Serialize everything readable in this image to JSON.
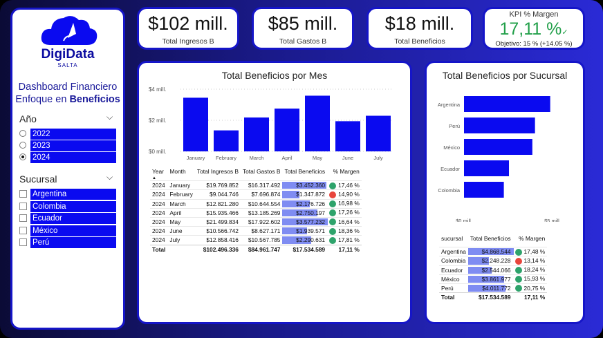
{
  "brand": {
    "name_a": "Digi",
    "name_b": "Data",
    "sub": "SALTA"
  },
  "dashboard": {
    "line1": "Dashboard Financiero",
    "line2_a": "Enfoque en ",
    "line2_b": "Beneficios"
  },
  "kpis": {
    "ingresos": {
      "value": "$102 mill.",
      "label": "Total Ingresos B"
    },
    "gastos": {
      "value": "$85 mill.",
      "label": "Total Gastos B"
    },
    "beneficios": {
      "value": "$18 mill.",
      "label": "Total Beneficios"
    },
    "margen": {
      "title": "KPI % Margen",
      "value": "17,11 %",
      "check": "✓",
      "goal": "Objetivo: 15 % (+14.05 %)"
    }
  },
  "slicers": {
    "year": {
      "title": "Año",
      "options": [
        "2022",
        "2023",
        "2024"
      ],
      "selected": "2024"
    },
    "branch": {
      "title": "Sucursal",
      "options": [
        "Argentina",
        "Colombia",
        "Ecuador",
        "México",
        "Perú"
      ]
    }
  },
  "monthly": {
    "title": "Total Beneficios por Mes",
    "headers": [
      "Year",
      "Month",
      "Total Ingresos B",
      "Total Gastos B",
      "Total Beneficios",
      "% Margen"
    ],
    "rows": [
      {
        "year": "2024",
        "month": "January",
        "ing": "$19.769.852",
        "gas": "$16.317.492",
        "ben": "$3.452.360",
        "benv": 3.452,
        "marg": "17,46 %",
        "status": "green"
      },
      {
        "year": "2024",
        "month": "February",
        "ing": "$9.044.746",
        "gas": "$7.696.874",
        "ben": "$1.347.872",
        "benv": 1.348,
        "marg": "14,90 %",
        "status": "red"
      },
      {
        "year": "2024",
        "month": "March",
        "ing": "$12.821.280",
        "gas": "$10.644.554",
        "ben": "$2.176.726",
        "benv": 2.177,
        "marg": "16,98 %",
        "status": "green"
      },
      {
        "year": "2024",
        "month": "April",
        "ing": "$15.935.466",
        "gas": "$13.185.269",
        "ben": "$2.750.197",
        "benv": 2.75,
        "marg": "17,26 %",
        "status": "green"
      },
      {
        "year": "2024",
        "month": "May",
        "ing": "$21.499.834",
        "gas": "$17.922.602",
        "ben": "$3.577.232",
        "benv": 3.577,
        "marg": "16,64 %",
        "status": "green"
      },
      {
        "year": "2024",
        "month": "June",
        "ing": "$10.566.742",
        "gas": "$8.627.171",
        "ben": "$1.939.571",
        "benv": 1.94,
        "marg": "18,36 %",
        "status": "green"
      },
      {
        "year": "2024",
        "month": "July",
        "ing": "$12.858.416",
        "gas": "$10.567.785",
        "ben": "$2.290.631",
        "benv": 2.291,
        "marg": "17,81 %",
        "status": "green"
      }
    ],
    "total": {
      "label": "Total",
      "ing": "$102.496.336",
      "gas": "$84.961.747",
      "ben": "$17.534.589",
      "marg": "17,11 %"
    }
  },
  "branch_table": {
    "headers": [
      "sucursal",
      "Total Beneficios",
      "% Margen"
    ],
    "rows": [
      {
        "name": "Argentina",
        "ben": "$4.868.544",
        "benv": 4.869,
        "marg": "17,48 %",
        "status": "green"
      },
      {
        "name": "Colombia",
        "ben": "$2.248.228",
        "benv": 2.248,
        "marg": "13,14 %",
        "status": "red"
      },
      {
        "name": "Ecuador",
        "ben": "$2.544.066",
        "benv": 2.544,
        "marg": "18,24 %",
        "status": "green"
      },
      {
        "name": "México",
        "ben": "$3.861.977",
        "benv": 3.862,
        "marg": "15,93 %",
        "status": "green"
      },
      {
        "name": "Perú",
        "ben": "$4.011.772",
        "benv": 4.012,
        "marg": "20,75 %",
        "status": "green"
      }
    ],
    "total": {
      "label": "Total",
      "ben": "$17.534.589",
      "marg": "17,11 %"
    }
  },
  "chart_data": [
    {
      "type": "bar",
      "title": "Total Beneficios por Mes",
      "categories": [
        "January",
        "February",
        "March",
        "April",
        "May",
        "June",
        "July"
      ],
      "values": [
        3.45,
        1.35,
        2.18,
        2.75,
        3.58,
        1.94,
        2.29
      ],
      "ylim": [
        0,
        4
      ],
      "ticks": [
        {
          "v": 4,
          "label": "$4 mill."
        },
        {
          "v": 2,
          "label": "$2 mill."
        },
        {
          "v": 0,
          "label": "$0 mill."
        }
      ],
      "color": "#0a0af0"
    },
    {
      "type": "bar",
      "orientation": "horizontal",
      "title": "Total Beneficios por Sucursal",
      "categories": [
        "Argentina",
        "Perú",
        "México",
        "Ecuador",
        "Colombia"
      ],
      "values": [
        4.87,
        4.01,
        3.86,
        2.54,
        2.25
      ],
      "xlim": [
        0,
        5
      ],
      "ticks": [
        {
          "v": 0,
          "label": "$0 mill."
        },
        {
          "v": 5,
          "label": "$5 mill."
        }
      ],
      "color": "#0a0af0"
    }
  ],
  "colors": {
    "accent": "#0a0af0",
    "good": "#2ea36b",
    "bad": "#e8453c",
    "kpi_green": "#22a04a"
  }
}
